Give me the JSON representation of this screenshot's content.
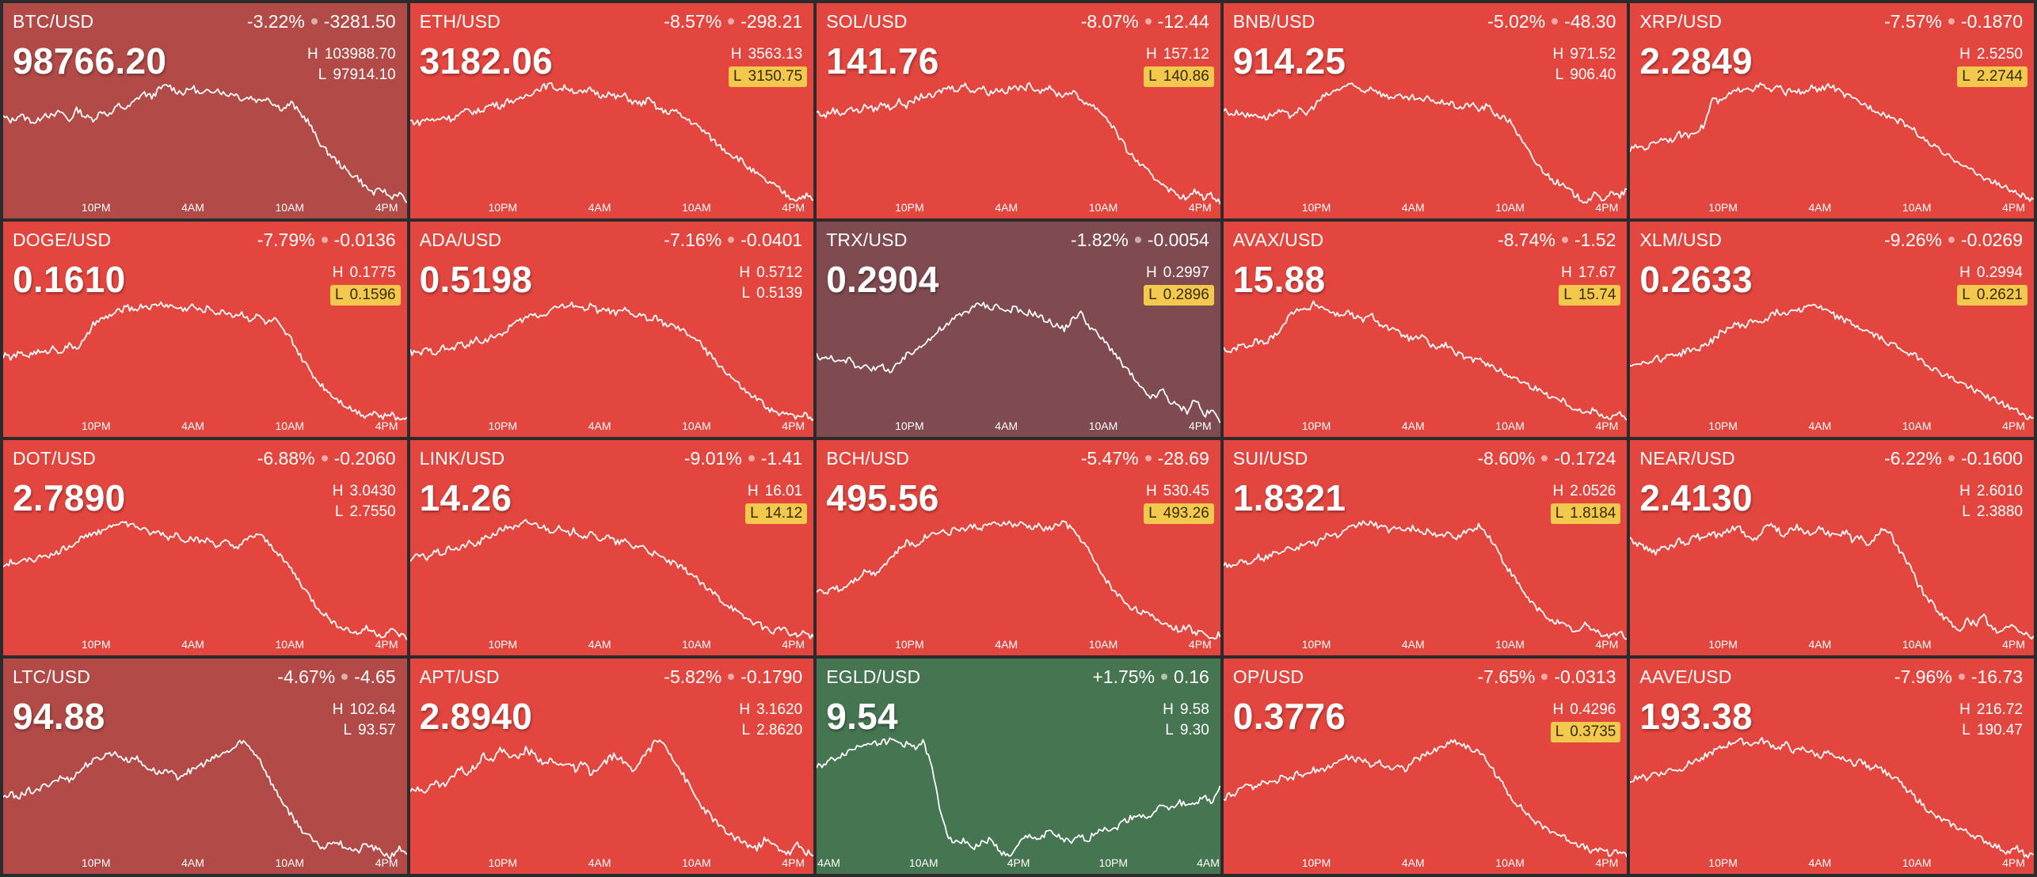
{
  "colors": {
    "down": "#e3463f",
    "down_dim": "#b24a47",
    "down_dark": "#7f4a50",
    "up": "#467552",
    "highlight": "#f2c94c"
  },
  "tiles": [
    {
      "symbol": "BTC/USD",
      "change_pct": "-3.22%",
      "change_abs": "-3281.50",
      "price": "98766.20",
      "high_label": "H",
      "high": "103988.70",
      "low_label": "L",
      "low": "97914.10",
      "low_hit": false,
      "tone": "down_dim",
      "axis": [
        "10PM",
        "4AM",
        "10AM",
        "4PM"
      ],
      "spark": [
        60,
        58,
        61,
        59,
        57,
        62,
        60,
        63,
        58,
        64,
        60,
        59,
        63,
        61,
        66,
        64,
        68,
        72,
        70,
        74,
        76,
        73,
        72,
        75,
        71,
        73,
        74,
        71,
        72,
        69,
        70,
        68,
        70,
        66,
        64,
        67,
        62,
        58,
        50,
        44,
        40,
        36,
        32,
        30,
        25,
        22,
        24,
        20,
        22,
        18
      ]
    },
    {
      "symbol": "ETH/USD",
      "change_pct": "-8.57%",
      "change_abs": "-298.21",
      "price": "3182.06",
      "high_label": "H",
      "high": "3563.13",
      "low_label": "L",
      "low": "3150.75",
      "low_hit": true,
      "tone": "down",
      "axis": [
        "10PM",
        "4AM",
        "10AM",
        "4PM"
      ],
      "spark": [
        58,
        57,
        59,
        58,
        60,
        59,
        61,
        63,
        62,
        64,
        66,
        65,
        68,
        67,
        70,
        72,
        74,
        75,
        73,
        74,
        72,
        71,
        73,
        70,
        71,
        69,
        70,
        67,
        66,
        68,
        64,
        62,
        63,
        60,
        58,
        55,
        52,
        48,
        45,
        42,
        40,
        36,
        33,
        30,
        28,
        25,
        22,
        21,
        23,
        20
      ]
    },
    {
      "symbol": "SOL/USD",
      "change_pct": "-8.07%",
      "change_abs": "-12.44",
      "price": "141.76",
      "high_label": "H",
      "high": "157.12",
      "low_label": "L",
      "low": "140.86",
      "low_hit": true,
      "tone": "down",
      "axis": [
        "10PM",
        "4AM",
        "10AM",
        "4PM"
      ],
      "spark": [
        62,
        60,
        63,
        61,
        64,
        62,
        65,
        63,
        66,
        64,
        67,
        65,
        68,
        70,
        69,
        72,
        74,
        73,
        75,
        72,
        74,
        71,
        73,
        72,
        74,
        73,
        75,
        72,
        74,
        71,
        70,
        72,
        68,
        66,
        64,
        60,
        55,
        48,
        42,
        38,
        34,
        30,
        28,
        24,
        22,
        20,
        24,
        21,
        22,
        19
      ]
    },
    {
      "symbol": "BNB/USD",
      "change_pct": "-5.02%",
      "change_abs": "-48.30",
      "price": "914.25",
      "high_label": "H",
      "high": "971.52",
      "low_label": "L",
      "low": "906.40",
      "low_hit": false,
      "tone": "down",
      "axis": [
        "10PM",
        "4AM",
        "10AM",
        "4PM"
      ],
      "spark": [
        64,
        62,
        63,
        61,
        62,
        60,
        62,
        63,
        61,
        64,
        62,
        66,
        70,
        72,
        74,
        76,
        75,
        73,
        75,
        72,
        70,
        71,
        69,
        70,
        68,
        70,
        67,
        68,
        66,
        65,
        67,
        64,
        66,
        62,
        60,
        58,
        50,
        44,
        38,
        34,
        30,
        28,
        25,
        22,
        20,
        23,
        21,
        24,
        22,
        26
      ]
    },
    {
      "symbol": "XRP/USD",
      "change_pct": "-7.57%",
      "change_abs": "-0.1870",
      "price": "2.2849",
      "high_label": "H",
      "high": "2.5250",
      "low_label": "L",
      "low": "2.2744",
      "low_hit": true,
      "tone": "down",
      "axis": [
        "10PM",
        "4AM",
        "10AM",
        "4PM"
      ],
      "spark": [
        42,
        44,
        43,
        46,
        48,
        47,
        50,
        49,
        52,
        54,
        68,
        66,
        70,
        72,
        74,
        73,
        75,
        72,
        74,
        71,
        73,
        70,
        74,
        72,
        75,
        73,
        70,
        68,
        66,
        64,
        62,
        60,
        58,
        56,
        54,
        50,
        46,
        44,
        40,
        38,
        36,
        33,
        30,
        28,
        26,
        24,
        22,
        20,
        18,
        16
      ]
    },
    {
      "symbol": "DOGE/USD",
      "change_pct": "-7.79%",
      "change_abs": "-0.0136",
      "price": "0.1610",
      "high_label": "H",
      "high": "0.1775",
      "low_label": "L",
      "low": "0.1596",
      "low_hit": true,
      "tone": "down",
      "axis": [
        "10PM",
        "4AM",
        "10AM",
        "4PM"
      ],
      "spark": [
        48,
        47,
        49,
        48,
        50,
        49,
        52,
        50,
        53,
        52,
        56,
        64,
        66,
        68,
        70,
        72,
        71,
        73,
        72,
        74,
        73,
        72,
        71,
        73,
        70,
        72,
        69,
        70,
        68,
        69,
        66,
        68,
        64,
        66,
        60,
        56,
        48,
        42,
        36,
        32,
        28,
        25,
        22,
        20,
        18,
        20,
        17,
        19,
        16,
        18
      ]
    },
    {
      "symbol": "ADA/USD",
      "change_pct": "-7.16%",
      "change_abs": "-0.0401",
      "price": "0.5198",
      "high_label": "H",
      "high": "0.5712",
      "low_label": "L",
      "low": "0.5139",
      "low_hit": false,
      "tone": "down",
      "axis": [
        "10PM",
        "4AM",
        "10AM",
        "4PM"
      ],
      "spark": [
        50,
        49,
        51,
        50,
        52,
        51,
        54,
        53,
        56,
        55,
        58,
        57,
        62,
        64,
        66,
        68,
        67,
        70,
        72,
        71,
        73,
        70,
        72,
        69,
        70,
        68,
        70,
        67,
        68,
        65,
        66,
        63,
        62,
        60,
        58,
        55,
        50,
        46,
        42,
        38,
        34,
        30,
        28,
        25,
        22,
        20,
        22,
        19,
        21,
        18
      ]
    },
    {
      "symbol": "TRX/USD",
      "change_pct": "-1.82%",
      "change_abs": "-0.0054",
      "price": "0.2904",
      "high_label": "H",
      "high": "0.2997",
      "low_label": "L",
      "low": "0.2896",
      "low_hit": true,
      "tone": "down_dark",
      "axis": [
        "10PM",
        "4AM",
        "10AM",
        "4PM"
      ],
      "spark": [
        44,
        42,
        43,
        40,
        42,
        38,
        40,
        37,
        39,
        36,
        40,
        44,
        46,
        50,
        52,
        56,
        58,
        62,
        64,
        66,
        68,
        66,
        67,
        64,
        66,
        63,
        64,
        62,
        60,
        58,
        56,
        60,
        64,
        58,
        54,
        50,
        46,
        40,
        36,
        30,
        26,
        24,
        28,
        22,
        20,
        18,
        24,
        16,
        18,
        14
      ]
    },
    {
      "symbol": "AVAX/USD",
      "change_pct": "-8.74%",
      "change_abs": "-1.52",
      "price": "15.88",
      "high_label": "H",
      "high": "17.67",
      "low_label": "L",
      "low": "15.74",
      "low_hit": true,
      "tone": "down",
      "axis": [
        "10PM",
        "4AM",
        "10AM",
        "4PM"
      ],
      "spark": [
        50,
        48,
        52,
        50,
        54,
        52,
        56,
        60,
        66,
        70,
        68,
        72,
        70,
        68,
        66,
        68,
        65,
        64,
        66,
        62,
        60,
        58,
        56,
        54,
        56,
        52,
        50,
        52,
        48,
        46,
        44,
        46,
        42,
        40,
        38,
        36,
        34,
        32,
        30,
        28,
        26,
        25,
        22,
        20,
        18,
        20,
        17,
        16,
        18,
        15
      ]
    },
    {
      "symbol": "XLM/USD",
      "change_pct": "-9.26%",
      "change_abs": "-0.0269",
      "price": "0.2633",
      "high_label": "H",
      "high": "0.2994",
      "low_label": "L",
      "low": "0.2621",
      "low_hit": true,
      "tone": "down",
      "axis": [
        "10PM",
        "4AM",
        "10AM",
        "4PM"
      ],
      "spark": [
        44,
        46,
        45,
        48,
        47,
        50,
        49,
        52,
        51,
        54,
        56,
        60,
        62,
        64,
        63,
        66,
        65,
        68,
        70,
        69,
        72,
        71,
        74,
        72,
        70,
        68,
        66,
        64,
        62,
        60,
        58,
        56,
        54,
        52,
        50,
        48,
        45,
        42,
        40,
        38,
        36,
        34,
        32,
        30,
        28,
        26,
        24,
        22,
        20,
        18
      ]
    },
    {
      "symbol": "DOT/USD",
      "change_pct": "-6.88%",
      "change_abs": "-0.2060",
      "price": "2.7890",
      "high_label": "H",
      "high": "3.0430",
      "low_label": "L",
      "low": "2.7550",
      "low_hit": false,
      "tone": "down",
      "axis": [
        "10PM",
        "4AM",
        "10AM",
        "4PM"
      ],
      "spark": [
        50,
        52,
        51,
        54,
        53,
        56,
        55,
        58,
        60,
        62,
        66,
        65,
        68,
        70,
        72,
        71,
        70,
        68,
        66,
        67,
        64,
        66,
        63,
        64,
        62,
        63,
        60,
        62,
        59,
        61,
        64,
        66,
        62,
        58,
        54,
        48,
        42,
        36,
        30,
        26,
        22,
        20,
        18,
        16,
        19,
        17,
        15,
        18,
        16,
        14
      ]
    },
    {
      "symbol": "LINK/USD",
      "change_pct": "-9.01%",
      "change_abs": "-1.41",
      "price": "14.26",
      "high_label": "H",
      "high": "16.01",
      "low_label": "L",
      "low": "14.12",
      "low_hit": true,
      "tone": "down",
      "axis": [
        "10PM",
        "4AM",
        "10AM",
        "4PM"
      ],
      "spark": [
        56,
        58,
        57,
        60,
        59,
        62,
        61,
        64,
        63,
        66,
        68,
        70,
        72,
        71,
        74,
        73,
        72,
        70,
        71,
        68,
        70,
        67,
        68,
        66,
        67,
        64,
        65,
        62,
        63,
        60,
        58,
        56,
        54,
        52,
        50,
        46,
        42,
        40,
        36,
        34,
        30,
        28,
        26,
        24,
        22,
        24,
        21,
        20,
        22,
        19
      ]
    },
    {
      "symbol": "BCH/USD",
      "change_pct": "-5.47%",
      "change_abs": "-28.69",
      "price": "495.56",
      "high_label": "H",
      "high": "530.45",
      "low_label": "L",
      "low": "493.26",
      "low_hit": true,
      "tone": "down",
      "axis": [
        "10PM",
        "4AM",
        "10AM",
        "4PM"
      ],
      "spark": [
        40,
        38,
        42,
        40,
        44,
        46,
        50,
        48,
        52,
        56,
        60,
        64,
        62,
        66,
        68,
        70,
        68,
        71,
        70,
        72,
        71,
        73,
        72,
        74,
        72,
        73,
        71,
        72,
        70,
        72,
        74,
        70,
        66,
        60,
        52,
        46,
        40,
        36,
        32,
        30,
        28,
        26,
        24,
        22,
        20,
        22,
        18,
        20,
        16,
        18
      ]
    },
    {
      "symbol": "SUI/USD",
      "change_pct": "-8.60%",
      "change_abs": "-0.1724",
      "price": "1.8321",
      "high_label": "H",
      "high": "2.0526",
      "low_label": "L",
      "low": "1.8184",
      "low_hit": true,
      "tone": "down",
      "axis": [
        "10PM",
        "4AM",
        "10AM",
        "4PM"
      ],
      "spark": [
        52,
        50,
        53,
        52,
        55,
        54,
        56,
        58,
        60,
        59,
        62,
        61,
        64,
        66,
        65,
        68,
        70,
        72,
        71,
        70,
        68,
        70,
        67,
        69,
        66,
        68,
        65,
        66,
        64,
        66,
        68,
        70,
        66,
        60,
        52,
        46,
        40,
        34,
        30,
        26,
        24,
        22,
        20,
        18,
        22,
        19,
        17,
        16,
        18,
        15
      ]
    },
    {
      "symbol": "NEAR/USD",
      "change_pct": "-6.22%",
      "change_abs": "-0.1600",
      "price": "2.4130",
      "high_label": "H",
      "high": "2.6010",
      "low_label": "L",
      "low": "2.3880",
      "low_hit": false,
      "tone": "down",
      "axis": [
        "10PM",
        "4AM",
        "10AM",
        "4PM"
      ],
      "spark": [
        60,
        58,
        56,
        54,
        58,
        56,
        60,
        58,
        62,
        60,
        63,
        61,
        64,
        66,
        62,
        60,
        64,
        68,
        64,
        62,
        66,
        64,
        62,
        65,
        63,
        61,
        64,
        60,
        62,
        58,
        62,
        66,
        60,
        54,
        48,
        40,
        34,
        30,
        26,
        22,
        20,
        24,
        22,
        26,
        20,
        18,
        22,
        20,
        18,
        16
      ]
    },
    {
      "symbol": "LTC/USD",
      "change_pct": "-4.67%",
      "change_abs": "-4.65",
      "price": "94.88",
      "high_label": "H",
      "high": "102.64",
      "low_label": "L",
      "low": "93.57",
      "low_hit": false,
      "tone": "down_dim",
      "axis": [
        "10PM",
        "4AM",
        "10AM",
        "4PM"
      ],
      "spark": [
        44,
        46,
        45,
        48,
        47,
        50,
        52,
        54,
        53,
        56,
        60,
        62,
        64,
        66,
        65,
        62,
        64,
        60,
        58,
        56,
        58,
        54,
        56,
        58,
        60,
        62,
        64,
        66,
        68,
        72,
        68,
        64,
        56,
        48,
        42,
        36,
        30,
        26,
        22,
        20,
        24,
        22,
        20,
        18,
        22,
        20,
        18,
        16,
        20,
        18
      ]
    },
    {
      "symbol": "APT/USD",
      "change_pct": "-5.82%",
      "change_abs": "-0.1790",
      "price": "2.8940",
      "high_label": "H",
      "high": "3.1620",
      "low_label": "L",
      "low": "2.8620",
      "low_hit": false,
      "tone": "down",
      "axis": [
        "10PM",
        "4AM",
        "10AM",
        "4PM"
      ],
      "spark": [
        42,
        44,
        43,
        46,
        45,
        48,
        52,
        50,
        54,
        58,
        56,
        60,
        58,
        56,
        60,
        58,
        55,
        56,
        53,
        55,
        52,
        54,
        50,
        52,
        56,
        58,
        54,
        52,
        56,
        60,
        64,
        62,
        56,
        50,
        44,
        38,
        34,
        30,
        26,
        24,
        22,
        20,
        18,
        22,
        20,
        18,
        16,
        20,
        17,
        15
      ]
    },
    {
      "symbol": "EGLD/USD",
      "change_pct": "+1.75%",
      "change_abs": "0.16",
      "price": "9.54",
      "high_label": "H",
      "high": "9.58",
      "low_label": "L",
      "low": "9.30",
      "low_hit": false,
      "tone": "up",
      "axis": [
        "4AM",
        "10AM",
        "4PM",
        "10PM",
        "4AM"
      ],
      "spark": [
        60,
        62,
        64,
        66,
        68,
        70,
        72,
        72,
        72,
        73,
        72,
        71,
        70,
        72,
        60,
        40,
        28,
        24,
        26,
        22,
        24,
        26,
        22,
        18,
        20,
        26,
        28,
        26,
        30,
        28,
        26,
        24,
        28,
        26,
        30,
        32,
        30,
        34,
        36,
        38,
        36,
        40,
        42,
        40,
        44,
        42,
        44,
        46,
        44,
        50
      ]
    },
    {
      "symbol": "OP/USD",
      "change_pct": "-7.65%",
      "change_abs": "-0.0313",
      "price": "0.3776",
      "high_label": "H",
      "high": "0.4296",
      "low_label": "L",
      "low": "0.3735",
      "low_hit": true,
      "tone": "down",
      "axis": [
        "10PM",
        "4AM",
        "10AM",
        "4PM"
      ],
      "spark": [
        44,
        46,
        48,
        50,
        49,
        52,
        51,
        54,
        53,
        56,
        55,
        58,
        57,
        60,
        62,
        64,
        63,
        62,
        60,
        62,
        58,
        60,
        58,
        62,
        64,
        66,
        68,
        70,
        72,
        70,
        68,
        66,
        62,
        56,
        50,
        44,
        40,
        36,
        32,
        30,
        28,
        26,
        24,
        22,
        20,
        18,
        20,
        17,
        19,
        16
      ]
    },
    {
      "symbol": "AAVE/USD",
      "change_pct": "-7.96%",
      "change_abs": "-16.73",
      "price": "193.38",
      "high_label": "H",
      "high": "216.72",
      "low_label": "L",
      "low": "190.47",
      "low_hit": false,
      "tone": "down",
      "axis": [
        "10PM",
        "4AM",
        "10AM",
        "4PM"
      ],
      "spark": [
        52,
        54,
        53,
        56,
        55,
        58,
        57,
        60,
        62,
        64,
        66,
        68,
        70,
        72,
        71,
        70,
        72,
        70,
        68,
        70,
        66,
        68,
        66,
        64,
        66,
        62,
        64,
        60,
        62,
        58,
        60,
        56,
        54,
        50,
        46,
        42,
        38,
        34,
        32,
        30,
        28,
        26,
        24,
        22,
        20,
        18,
        16,
        18,
        15,
        14
      ]
    }
  ]
}
